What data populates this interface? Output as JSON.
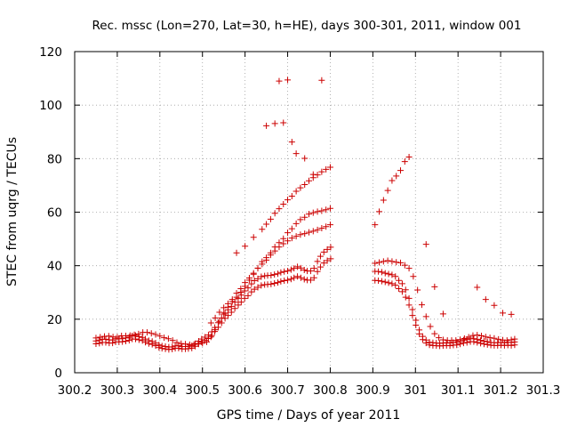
{
  "chart_data": {
    "type": "scatter",
    "title": "Rec. mssc (Lon=270, Lat=30, h=HE), days 300-301, 2011, window 001",
    "xlabel": "GPS time / Days of year 2011",
    "ylabel": "STEC from uqrg / TECUs",
    "xlim": [
      300.2,
      301.3
    ],
    "ylim": [
      0,
      120
    ],
    "xticks": [
      "300.2",
      "300.3",
      "300.4",
      "300.5",
      "300.6",
      "300.7",
      "300.8",
      "300.9",
      "301",
      "301.1",
      "301.2",
      "301.3"
    ],
    "yticks": [
      "0",
      "20",
      "40",
      "60",
      "80",
      "100",
      "120"
    ],
    "grid": true,
    "marker": "+",
    "color": "#cc0000",
    "series": [
      {
        "x": [
          300.25,
          300.258,
          300.265,
          300.273,
          300.281,
          300.289,
          300.296,
          300.304,
          300.312,
          300.32,
          300.328,
          300.335,
          300.343,
          300.351,
          300.359,
          300.366,
          300.374,
          300.382,
          300.39,
          300.398,
          300.405,
          300.413,
          300.421,
          300.429,
          300.436,
          300.444,
          300.452,
          300.46,
          300.467,
          300.475,
          300.483,
          300.491,
          300.498,
          300.506,
          300.514,
          300.522,
          300.529,
          300.537,
          300.545,
          300.553,
          300.56,
          300.568,
          300.576,
          300.584,
          300.591,
          300.599,
          300.607,
          300.615,
          300.622,
          300.63,
          300.638,
          300.646,
          300.653,
          300.661,
          300.669,
          300.677,
          300.684,
          300.692,
          300.7,
          300.708,
          300.715,
          300.723,
          300.731,
          300.739,
          300.746,
          300.754,
          300.762,
          300.77,
          300.777,
          300.785,
          300.793,
          300.801,
          300.25,
          300.258,
          300.265,
          300.273,
          300.281,
          300.289,
          300.296,
          300.304,
          300.312,
          300.32,
          300.328,
          300.335,
          300.343,
          300.351,
          300.359,
          300.366,
          300.374,
          300.382,
          300.39,
          300.398,
          300.405,
          300.413,
          300.421,
          300.429,
          300.436,
          300.444,
          300.452,
          300.46,
          300.467,
          300.475,
          300.483,
          300.491,
          300.498,
          300.506,
          300.514,
          300.522,
          300.529,
          300.537,
          300.545,
          300.553,
          300.56,
          300.568,
          300.576,
          300.584,
          300.591,
          300.599,
          300.607,
          300.615,
          300.622,
          300.63,
          300.638,
          300.646,
          300.653,
          300.661,
          300.669,
          300.677,
          300.684,
          300.692,
          300.7,
          300.708,
          300.715,
          300.723,
          300.731,
          300.739,
          300.746,
          300.754,
          300.762,
          300.77,
          300.777,
          300.785,
          300.793,
          300.801,
          300.25,
          300.26,
          300.27,
          300.28,
          300.29,
          300.3,
          300.31,
          300.32,
          300.33,
          300.34,
          300.35,
          300.36,
          300.37,
          300.38,
          300.39,
          300.4,
          300.41,
          300.42,
          300.43,
          300.44,
          300.45,
          300.46,
          300.47,
          300.48,
          300.49,
          300.5,
          300.51,
          300.52,
          300.53,
          300.54,
          300.55,
          300.56,
          300.57,
          300.58,
          300.59,
          300.6,
          300.61,
          300.62,
          300.63,
          300.64,
          300.65,
          300.66,
          300.67,
          300.68,
          300.69,
          300.7,
          300.71,
          300.72,
          300.73,
          300.74,
          300.75,
          300.76,
          300.77,
          300.78,
          300.79,
          300.8,
          300.52,
          300.53,
          300.54,
          300.55,
          300.56,
          300.57,
          300.58,
          300.59,
          300.6,
          300.61,
          300.62,
          300.63,
          300.64,
          300.65,
          300.66,
          300.67,
          300.68,
          300.69,
          300.7,
          300.71,
          300.72,
          300.73,
          300.74,
          300.75,
          300.76,
          300.77,
          300.78,
          300.79,
          300.8,
          300.58,
          300.6,
          300.62,
          300.64,
          300.65,
          300.66,
          300.67,
          300.68,
          300.69,
          300.7,
          300.71,
          300.72,
          300.73,
          300.74,
          300.75,
          300.76,
          300.77,
          300.78,
          300.79,
          300.8,
          300.65,
          300.67,
          300.68,
          300.69,
          300.7,
          300.71,
          300.72,
          300.74,
          300.76,
          300.78,
          300.905,
          300.913,
          300.921,
          300.929,
          300.937,
          300.945,
          300.953,
          300.961,
          300.969,
          300.977,
          300.985,
          300.993,
          301.001,
          301.009,
          301.017,
          301.025,
          301.033,
          301.041,
          301.049,
          301.057,
          301.065,
          301.073,
          301.081,
          301.089,
          301.097,
          301.105,
          301.113,
          301.121,
          301.129,
          301.137,
          301.145,
          301.153,
          301.161,
          301.169,
          301.177,
          301.185,
          301.193,
          301.201,
          301.209,
          301.217,
          301.225,
          301.233,
          300.905,
          300.913,
          300.921,
          300.929,
          300.937,
          300.945,
          300.953,
          300.961,
          300.969,
          300.977,
          300.985,
          300.993,
          301.001,
          301.009,
          301.017,
          301.025,
          301.033,
          301.041,
          301.049,
          301.057,
          301.065,
          301.073,
          301.081,
          301.089,
          301.097,
          301.105,
          301.113,
          301.121,
          301.129,
          301.137,
          301.145,
          301.153,
          301.161,
          301.169,
          301.177,
          301.185,
          301.193,
          301.201,
          301.209,
          301.217,
          301.225,
          301.233,
          300.905,
          300.915,
          300.925,
          300.935,
          300.945,
          300.955,
          300.965,
          300.975,
          300.985,
          300.995,
          301.005,
          301.015,
          301.025,
          301.035,
          301.045,
          301.055,
          301.065,
          301.075,
          301.085,
          301.095,
          301.105,
          301.115,
          301.125,
          301.135,
          301.145,
          301.155,
          301.165,
          301.175,
          301.185,
          301.195,
          301.205,
          301.215,
          301.225,
          301.233,
          300.905,
          300.915,
          300.925,
          300.935,
          300.945,
          300.955,
          300.965,
          300.975,
          300.985,
          301.025,
          301.045,
          301.065,
          301.145,
          301.165,
          301.185,
          301.205,
          301.225
        ],
        "y": [
          10.8,
          11.0,
          11.3,
          11.3,
          11.1,
          11.1,
          11.5,
          11.5,
          11.6,
          11.8,
          12.1,
          12.6,
          12.6,
          12.3,
          12.0,
          11.4,
          10.9,
          10.6,
          10.1,
          9.4,
          9.1,
          8.9,
          8.7,
          8.8,
          9.1,
          9.2,
          8.9,
          8.9,
          9.0,
          9.2,
          9.9,
          10.7,
          11.5,
          12.1,
          12.8,
          13.9,
          15.4,
          17.0,
          18.6,
          20.3,
          21.4,
          22.6,
          24.0,
          25.3,
          26.4,
          27.8,
          28.8,
          30.2,
          31.2,
          31.9,
          32.6,
          32.9,
          33.0,
          33.1,
          33.4,
          33.7,
          34.1,
          34.4,
          34.6,
          35.0,
          35.5,
          36.0,
          35.5,
          34.9,
          34.6,
          34.6,
          35.5,
          37.8,
          39.5,
          41.0,
          41.9,
          42.6,
          11.9,
          12.2,
          12.5,
          12.5,
          12.3,
          12.2,
          12.7,
          12.7,
          12.7,
          13.0,
          13.3,
          13.8,
          13.9,
          13.5,
          13.2,
          12.6,
          12.0,
          11.7,
          11.1,
          10.4,
          10.0,
          9.8,
          9.6,
          9.7,
          10.0,
          10.1,
          9.8,
          9.8,
          9.9,
          10.1,
          10.9,
          11.8,
          12.6,
          13.3,
          14.1,
          15.3,
          16.9,
          18.7,
          20.5,
          22.3,
          23.5,
          24.8,
          26.4,
          27.8,
          29.0,
          30.6,
          31.7,
          33.2,
          34.4,
          35.1,
          35.9,
          36.2,
          36.3,
          36.4,
          36.7,
          37.0,
          37.5,
          37.8,
          38.0,
          38.5,
          39.0,
          39.6,
          39.1,
          38.4,
          38.0,
          38.0,
          39.0,
          41.6,
          43.5,
          45.1,
          46.1,
          46.9,
          13.0,
          13.3,
          13.6,
          13.7,
          13.4,
          13.3,
          13.8,
          13.8,
          13.9,
          14.2,
          14.5,
          15.1,
          15.1,
          14.7,
          14.3,
          13.7,
          13.1,
          12.7,
          12.1,
          11.3,
          10.9,
          10.7,
          10.5,
          10.6,
          10.9,
          11.0,
          11.5,
          13.4,
          16.1,
          19.2,
          21.9,
          24.5,
          26.6,
          28.2,
          30.1,
          32.3,
          34.6,
          36.8,
          39.1,
          41.5,
          43.0,
          44.8,
          47.0,
          48.6,
          50.1,
          52.3,
          53.8,
          55.7,
          57.2,
          58.1,
          59.3,
          59.8,
          60.2,
          60.5,
          60.9,
          61.4,
          18.6,
          20.5,
          22.6,
          24.3,
          25.8,
          27.4,
          29.7,
          31.4,
          33.7,
          35.4,
          37.2,
          39.0,
          40.6,
          42.1,
          44.0,
          45.5,
          47.0,
          48.2,
          49.3,
          50.3,
          51.0,
          51.6,
          52.0,
          52.5,
          52.9,
          53.4,
          54.0,
          54.6,
          55.3,
          44.8,
          47.3,
          50.6,
          53.6,
          55.5,
          57.4,
          59.6,
          61.3,
          63.0,
          64.6,
          66.0,
          67.8,
          69.1,
          70.3,
          71.7,
          72.9,
          73.9,
          75.1,
          76.0,
          76.8,
          92.3,
          93.1,
          109.0,
          93.4,
          109.4,
          86.2,
          81.9,
          80.1,
          74.1,
          109.3,
          34.5,
          34.4,
          34.2,
          33.9,
          33.6,
          33.3,
          32.7,
          31.4,
          30.3,
          28.2,
          25.3,
          21.4,
          17.8,
          14.5,
          12.4,
          11.1,
          10.4,
          10.2,
          10.1,
          10.0,
          10.1,
          10.2,
          10.1,
          10.3,
          10.4,
          10.7,
          11.1,
          11.3,
          11.6,
          11.6,
          11.3,
          11.0,
          10.7,
          10.5,
          10.3,
          10.2,
          10.2,
          10.3,
          10.2,
          10.3,
          10.2,
          10.4,
          37.9,
          37.8,
          37.6,
          37.2,
          36.9,
          36.6,
          36.0,
          34.5,
          33.3,
          31.0,
          27.8,
          23.6,
          19.6,
          16.0,
          13.6,
          12.2,
          11.4,
          11.2,
          11.1,
          11.0,
          11.1,
          11.2,
          11.1,
          11.3,
          11.4,
          11.7,
          12.2,
          12.5,
          12.7,
          12.7,
          12.5,
          12.1,
          11.8,
          11.6,
          11.3,
          11.2,
          11.2,
          11.3,
          11.2,
          11.4,
          11.3,
          11.5,
          40.9,
          41.2,
          41.6,
          41.9,
          41.6,
          41.3,
          41.1,
          40.2,
          39.0,
          36.0,
          30.9,
          25.4,
          21.0,
          17.3,
          14.6,
          13.1,
          12.3,
          12.1,
          12.1,
          12.1,
          12.4,
          12.8,
          13.3,
          13.9,
          14.1,
          13.8,
          13.4,
          13.1,
          12.9,
          12.5,
          12.2,
          12.1,
          12.3,
          12.6,
          55.3,
          60.2,
          64.5,
          68.1,
          71.8,
          73.5,
          75.6,
          78.9,
          80.6,
          48.0,
          32.1,
          22.0,
          31.9,
          27.4,
          25.2,
          22.3,
          21.8
        ]
      }
    ]
  }
}
